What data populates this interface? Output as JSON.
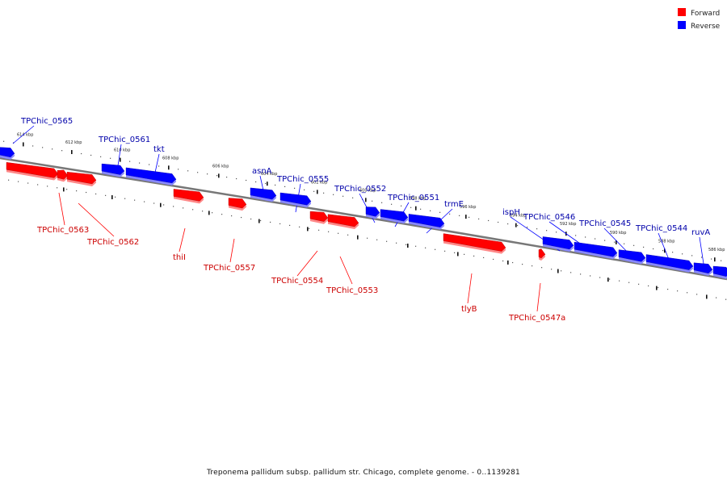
{
  "title": "Treponema pallidum subsp. pallidum str. Chicago, complete genome. - 0..1139281",
  "legend": {
    "forward": "Forward",
    "reverse": "Reverse"
  },
  "colors": {
    "forward": "#ff0000",
    "reverse": "#0000ff",
    "forward_label": "#cc0000",
    "reverse_label": "#0000aa",
    "backbone": "#777777"
  },
  "kbp_ticks": [
    "614 kbp",
    "612 kbp",
    "610 kbp",
    "608 kbp",
    "606 kbp",
    "604 kbp",
    "602 kbp",
    "600 kbp",
    "598 kbp",
    "596 kbp",
    "594 kbp",
    "592 kbp",
    "590 kbp",
    "588 kbp",
    "586 kbp"
  ],
  "reverse_genes": [
    "TPChic_0565",
    "TPChic_0561",
    "tkt",
    "asnA",
    "TPChic_0555",
    "TPChic_0552",
    "TPChic_0551",
    "trmE",
    "ispH",
    "TPChic_0546",
    "TPChic_0545",
    "TPChic_0544",
    "ruvA"
  ],
  "forward_genes": [
    "TPChic_0563",
    "TPChic_0562",
    "thiI",
    "TPChic_0557",
    "TPChic_0554",
    "TPChic_0553",
    "tlyB",
    "TPChic_0547a"
  ]
}
